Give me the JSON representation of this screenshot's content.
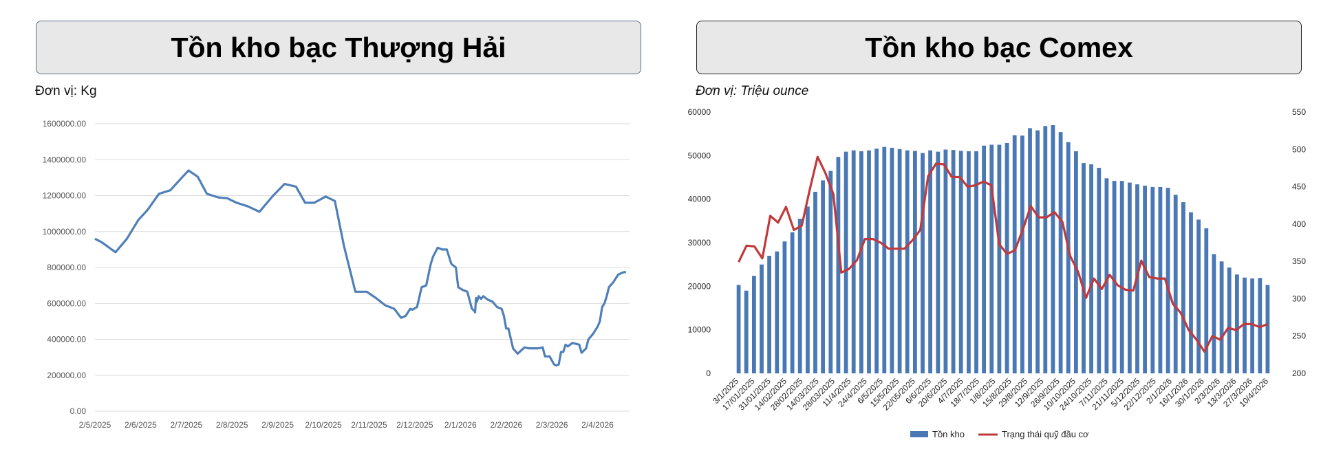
{
  "colors": {
    "line_left": "#4f7fb8",
    "bars": "#4a78b5",
    "line_right": "#c0393b",
    "grid": "#d9d9d9"
  },
  "chart_data": [
    {
      "type": "line",
      "title": "Tồn kho bạc Thượng Hải",
      "unit_label": "Đơn vị: Kg",
      "ylim": [
        0,
        1600000
      ],
      "yticks": [
        0,
        200000,
        400000,
        600000,
        800000,
        1000000,
        1200000,
        1400000,
        1600000
      ],
      "ytick_labels": [
        "0.00",
        "200000.00",
        "400000.00",
        "600000.00",
        "800000.00",
        "1000000.00",
        "1200000.00",
        "1400000.00",
        "1600000.00"
      ],
      "xtick_labels": [
        "2/5/2025",
        "2/6/2025",
        "2/7/2025",
        "2/8/2025",
        "2/9/2025",
        "2/10/2025",
        "2/11/2025",
        "2/12/2025",
        "2/1/2026",
        "2/2/2026",
        "2/3/2026",
        "2/4/2026"
      ],
      "grid": true,
      "series": [
        {
          "x": [
            0,
            0.15,
            0.45,
            0.7,
            0.95,
            1.15,
            1.4,
            1.65,
            1.9,
            2.05,
            2.25,
            2.45,
            2.7,
            2.9,
            3.1,
            3.35,
            3.6,
            3.9,
            4.15,
            4.4,
            4.6,
            4.8,
            5.05,
            5.25,
            5.45,
            5.7,
            5.95,
            6.15,
            6.35,
            6.55,
            6.7,
            6.8,
            6.9,
            6.95,
            7.05,
            7.15,
            7.25,
            7.35,
            7.4,
            7.5,
            7.6,
            7.7,
            7.8,
            7.9,
            7.95,
            8.05,
            8.15,
            8.25,
            8.3,
            8.32,
            8.34,
            8.36,
            8.4,
            8.45,
            8.5,
            8.6,
            8.7,
            8.8,
            8.9,
            8.95,
            9.0,
            9.05,
            9.1,
            9.15,
            9.2,
            9.25,
            9.4,
            9.5,
            9.6,
            9.7,
            9.8,
            9.85,
            9.95,
            10.05,
            10.1,
            10.15,
            10.2,
            10.25,
            10.3,
            10.35,
            10.45,
            10.6,
            10.65,
            10.75,
            10.8,
            10.9,
            11.0,
            11.05,
            11.1,
            11.15,
            11.2,
            11.25,
            11.35,
            11.45,
            11.55,
            11.62
          ],
          "values": [
            960000,
            940000,
            885000,
            960000,
            1065000,
            1120000,
            1210000,
            1230000,
            1300000,
            1340000,
            1305000,
            1210000,
            1190000,
            1185000,
            1160000,
            1140000,
            1110000,
            1200000,
            1265000,
            1250000,
            1160000,
            1160000,
            1195000,
            1170000,
            920000,
            665000,
            665000,
            630000,
            590000,
            570000,
            520000,
            530000,
            570000,
            565000,
            580000,
            690000,
            700000,
            820000,
            860000,
            910000,
            900000,
            900000,
            820000,
            800000,
            690000,
            675000,
            665000,
            570000,
            560000,
            550000,
            630000,
            610000,
            640000,
            625000,
            640000,
            620000,
            610000,
            580000,
            570000,
            530000,
            460000,
            460000,
            405000,
            350000,
            335000,
            320000,
            355000,
            350000,
            350000,
            350000,
            355000,
            305000,
            305000,
            260000,
            255000,
            260000,
            330000,
            330000,
            370000,
            360000,
            380000,
            370000,
            325000,
            350000,
            400000,
            430000,
            470000,
            500000,
            580000,
            600000,
            640000,
            690000,
            720000,
            760000,
            772000,
            775000
          ]
        }
      ]
    },
    {
      "type": "bar+line",
      "title": "Tồn kho bạc Comex",
      "unit_label": "Đơn vị: Triệu ounce",
      "ylim": [
        0,
        60000
      ],
      "y2lim": [
        200,
        550
      ],
      "yticks": [
        0,
        10000,
        20000,
        30000,
        40000,
        50000,
        60000
      ],
      "y2ticks": [
        200,
        250,
        300,
        350,
        400,
        450,
        500,
        550
      ],
      "xtick_labels": [
        "3/1/2025",
        "17/01/2025",
        "31/01/2025",
        "14/02/2025",
        "28/02/2025",
        "14/03/2025",
        "28/03/2025",
        "11/4/2025",
        "24/4/2025",
        "6/5/2025",
        "15/5/2025",
        "22/05/2025",
        "6/6/2025",
        "20/6/2025",
        "4/7/2025",
        "18/7/2025",
        "1/8/2025",
        "15/8/2025",
        "29/8/2025",
        "12/9/2025",
        "26/9/2025",
        "10/10/2025",
        "24/10/2025",
        "7/11/2025",
        "21/11/2025",
        "5/12/2025",
        "22/12/2025",
        "2/1/2026",
        "16/1/2026",
        "30/1/2026",
        "2/3/2026",
        "13/3/2026",
        "27/3/2026",
        "10/4/2026"
      ],
      "legend": [
        "Tồn kho",
        "Trạng thái quỹ đầu cơ"
      ],
      "legend_position": "bottom",
      "grid": false,
      "series": [
        {
          "name": "Tồn kho",
          "type": "bar",
          "axis": "left",
          "values": [
            20300,
            19000,
            22400,
            25000,
            27000,
            28000,
            30300,
            32400,
            35500,
            38300,
            41700,
            44300,
            46500,
            49700,
            50900,
            51200,
            51000,
            51200,
            51600,
            52000,
            51800,
            51500,
            51200,
            51100,
            50600,
            51200,
            50900,
            51400,
            51300,
            51100,
            51000,
            51000,
            52300,
            52500,
            52500,
            52900,
            54700,
            54600,
            56300,
            55800,
            56800,
            57000,
            55400,
            53100,
            51000,
            48300,
            48000,
            47200,
            44800,
            44200,
            44200,
            43800,
            43400,
            43100,
            42800,
            42800,
            42600,
            41000,
            39300,
            37000,
            35300,
            33300,
            27400,
            25700,
            24300,
            22700,
            22000,
            21800,
            21900,
            20300
          ]
        },
        {
          "name": "Trạng thái quỹ đầu cơ",
          "type": "line",
          "axis": "right",
          "values": [
            349,
            371,
            370,
            354,
            411,
            402,
            423,
            392,
            398,
            446,
            490,
            468,
            440,
            335,
            340,
            352,
            380,
            380,
            375,
            367,
            367,
            367,
            378,
            392,
            464,
            481,
            480,
            463,
            463,
            450,
            452,
            457,
            452,
            373,
            360,
            365,
            393,
            424,
            409,
            409,
            416,
            403,
            357,
            336,
            301,
            327,
            313,
            332,
            318,
            312,
            311,
            351,
            329,
            327,
            327,
            293,
            281,
            258,
            245,
            229,
            250,
            245,
            261,
            258,
            266,
            266,
            262,
            266
          ]
        }
      ]
    }
  ]
}
